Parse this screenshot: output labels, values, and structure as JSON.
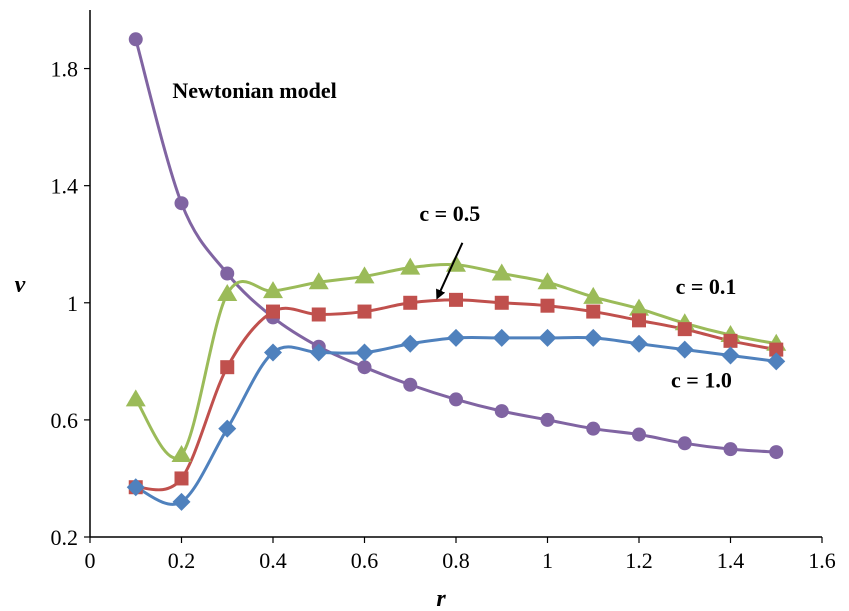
{
  "chart_data": {
    "type": "line",
    "title": "",
    "xlabel": "r",
    "ylabel": "v",
    "xlim": [
      0,
      1.6
    ],
    "ylim": [
      0.2,
      2.0
    ],
    "xticks": [
      0,
      0.2,
      0.4,
      0.6,
      0.8,
      1.0,
      1.2,
      1.4,
      1.6
    ],
    "xtick_labels": [
      "0",
      "0.2",
      "0.4",
      "0.6",
      "0.8",
      "1",
      "1.2",
      "1.4",
      "1.6"
    ],
    "yticks": [
      0.2,
      0.6,
      1.0,
      1.4,
      1.8
    ],
    "ytick_labels": [
      "0.2",
      "0.6",
      "1",
      "1.4",
      "1.8"
    ],
    "grid": false,
    "legend": "none",
    "x": [
      0.1,
      0.2,
      0.3,
      0.4,
      0.5,
      0.6,
      0.7,
      0.8,
      0.9,
      1.0,
      1.1,
      1.2,
      1.3,
      1.4,
      1.5
    ],
    "series": [
      {
        "name": "Newtonian model",
        "marker": "circle",
        "color": "#8064A2",
        "values": [
          1.9,
          1.34,
          1.1,
          0.95,
          0.85,
          0.78,
          0.72,
          0.67,
          0.63,
          0.6,
          0.57,
          0.55,
          0.52,
          0.5,
          0.49
        ]
      },
      {
        "name": "c = 0.1",
        "marker": "triangle",
        "color": "#9BBB59",
        "values": [
          0.67,
          0.48,
          1.03,
          1.04,
          1.07,
          1.09,
          1.12,
          1.13,
          1.1,
          1.07,
          1.02,
          0.98,
          0.93,
          0.89,
          0.86
        ]
      },
      {
        "name": "c = 0.5",
        "marker": "square",
        "color": "#C0504D",
        "values": [
          0.37,
          0.4,
          0.78,
          0.97,
          0.96,
          0.97,
          1.0,
          1.01,
          1.0,
          0.99,
          0.97,
          0.94,
          0.91,
          0.87,
          0.84
        ]
      },
      {
        "name": "c = 1.0",
        "marker": "diamond",
        "color": "#4F81BD",
        "values": [
          0.37,
          0.32,
          0.57,
          0.83,
          0.83,
          0.83,
          0.86,
          0.88,
          0.88,
          0.88,
          0.88,
          0.86,
          0.84,
          0.82,
          0.8
        ]
      }
    ],
    "annotations": [
      {
        "text": "Newtonian model",
        "x": 0.18,
        "y": 1.7
      },
      {
        "text": "c = 0.5",
        "x": 0.72,
        "y": 1.28,
        "arrow_to": {
          "x": 0.76,
          "y": 1.02
        }
      },
      {
        "text": "c = 0.1",
        "x": 1.28,
        "y": 1.03
      },
      {
        "text": "c = 1.0",
        "x": 1.27,
        "y": 0.71
      }
    ]
  }
}
